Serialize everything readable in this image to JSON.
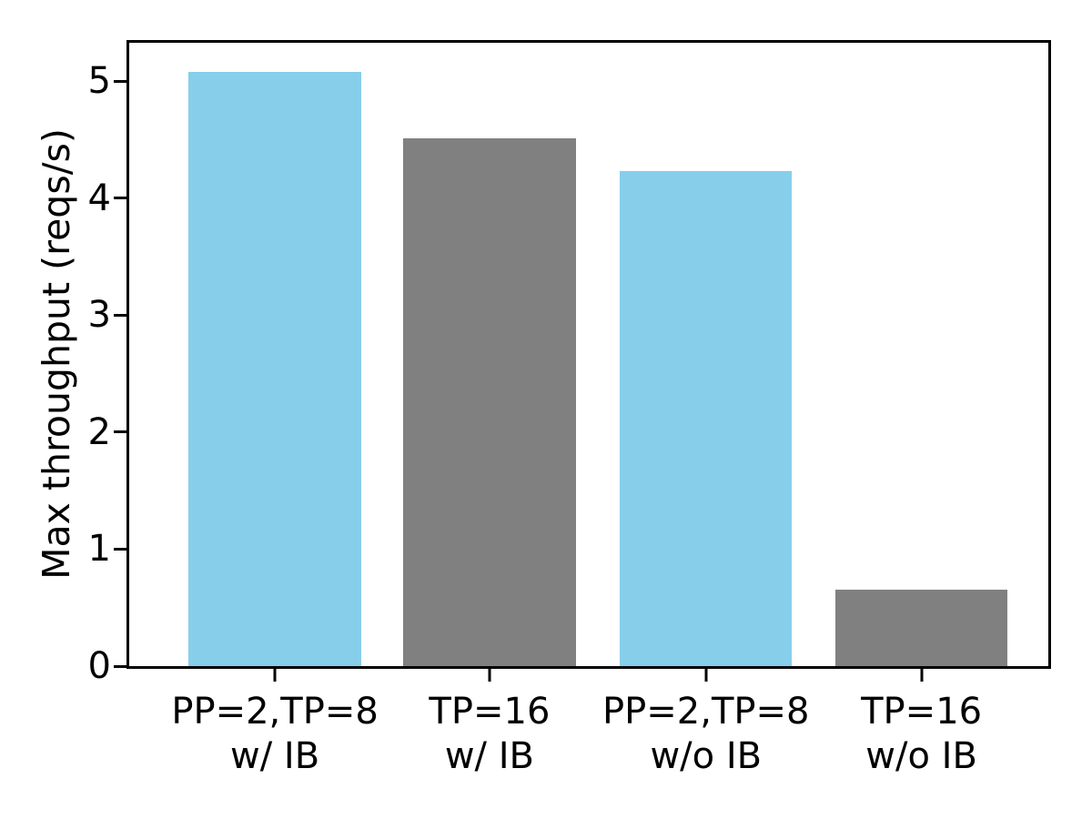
{
  "figure": {
    "background_color": "#ffffff",
    "axis_color": "#000000"
  },
  "chart_data": {
    "type": "bar",
    "title": "",
    "xlabel": "",
    "ylabel": "Max throughput (reqs/s)",
    "ylim": [
      0,
      5.33
    ],
    "yticks": [
      0,
      1,
      2,
      3,
      4,
      5
    ],
    "grid": false,
    "legend": "none",
    "categories": [
      [
        "PP=2,TP=8",
        "w/ IB"
      ],
      [
        "TP=16",
        "w/ IB"
      ],
      [
        "PP=2,TP=8",
        "w/o IB"
      ],
      [
        "TP=16",
        "w/o IB"
      ]
    ],
    "values": [
      5.08,
      4.51,
      4.23,
      0.65
    ],
    "bar_colors": [
      "#87CEEB",
      "#808080",
      "#87CEEB",
      "#808080"
    ]
  }
}
